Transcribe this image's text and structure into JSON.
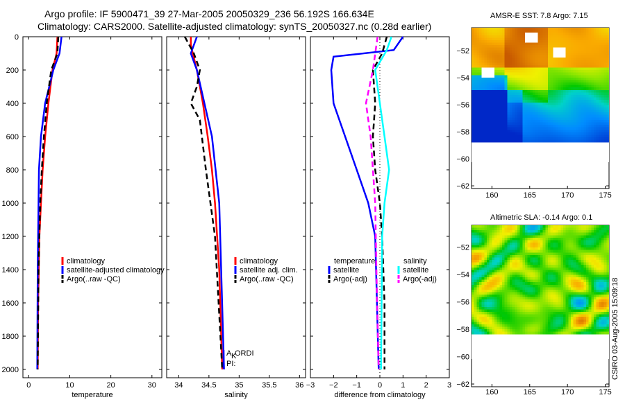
{
  "title": {
    "line1": "Argo profile: IF 5900471_39 27-Mar-2005 20050329_236 56.192S 166.634E",
    "line2": "Climatology: CARS2000. Satellite-adjusted climatology: synTS_20050327.nc (0.28d earlier)"
  },
  "stamp": "CSIRO 03-Aug-2005 15:09:18",
  "colors": {
    "climatology": "#ff0000",
    "satellite": "#0000ff",
    "argo": "#000000",
    "sal_satellite": "#00ffff",
    "sal_argo": "#ff00ff"
  },
  "chart_data": [
    {
      "type": "line",
      "id": "temperature",
      "xlabel": "temperature",
      "ylabel": "",
      "xlim": [
        -1.4,
        32.4
      ],
      "ylim": [
        2050,
        0
      ],
      "xticks": [
        "0",
        "10",
        "20",
        "30"
      ],
      "yticks": [
        "0",
        "200",
        "400",
        "600",
        "800",
        "1000",
        "1200",
        "1400",
        "1600",
        "1800",
        "2000"
      ],
      "legend": [
        "climatology",
        "satellite-adjusted climatology",
        "Argo(..raw -QC)"
      ],
      "series": [
        {
          "name": "climatology",
          "color": "#ff0000",
          "dash": false,
          "depth": [
            0,
            100,
            200,
            400,
            600,
            800,
            1000,
            1200,
            1600,
            2000
          ],
          "x": [
            7,
            6.8,
            5.8,
            4.8,
            4,
            3.4,
            3,
            2.6,
            2.3,
            2.2
          ]
        },
        {
          "name": "satellite-adjusted climatology",
          "color": "#0000ff",
          "dash": false,
          "depth": [
            0,
            100,
            200,
            400,
            600,
            800,
            1000,
            1400,
            2000
          ],
          "x": [
            8,
            7.5,
            6,
            4,
            3,
            2.5,
            2.4,
            2.2,
            2.1
          ]
        },
        {
          "name": "Argo(..raw -QC)",
          "color": "#000000",
          "dash": true,
          "depth": [
            0,
            100,
            200,
            400,
            600,
            800,
            1000,
            1400,
            2000
          ],
          "x": [
            7.2,
            7,
            5.5,
            4.4,
            3.7,
            3.2,
            2.8,
            2.4,
            2.2
          ]
        }
      ]
    },
    {
      "type": "line",
      "id": "salinity",
      "xlabel": "salinity",
      "xlim": [
        33.8,
        36.1
      ],
      "ylim": [
        2050,
        0
      ],
      "xticks": [
        "34",
        "34.5",
        "35",
        "35.5",
        "36"
      ],
      "legend": [
        "climatology",
        "satellite adj. clim.",
        "Argo(..raw -QC)"
      ],
      "annotations": [
        "ORDI",
        "PI:"
      ],
      "annotation_prefix": "A",
      "annotation_sub": "K",
      "series": [
        {
          "name": "climatology",
          "color": "#ff0000",
          "dash": false,
          "depth": [
            0,
            50,
            200,
            400,
            600,
            800,
            1000,
            1400,
            2000
          ],
          "x": [
            34.2,
            34.2,
            34.3,
            34.4,
            34.48,
            34.55,
            34.6,
            34.67,
            34.72
          ]
        },
        {
          "name": "satellite adj. clim.",
          "color": "#0000ff",
          "dash": false,
          "depth": [
            0,
            100,
            200,
            600,
            1000,
            2000
          ],
          "x": [
            34.3,
            34.2,
            34.3,
            34.55,
            34.67,
            34.75
          ]
        },
        {
          "name": "Argo(..raw -QC)",
          "color": "#000000",
          "dash": true,
          "depth": [
            0,
            100,
            200,
            300,
            400,
            500,
            800,
            1200,
            2000
          ],
          "x": [
            34.1,
            34.25,
            34.35,
            34.3,
            34.2,
            34.35,
            34.45,
            34.6,
            34.72
          ]
        }
      ]
    },
    {
      "type": "line",
      "id": "difference",
      "xlabel": "difference from climatology",
      "xlim": [
        -3,
        3
      ],
      "ylim": [
        2050,
        0
      ],
      "xticks": [
        "-3",
        "-2",
        "-1",
        "0",
        "1",
        "2",
        "3"
      ],
      "legend_temperature": {
        "heading": "temperature",
        "items": [
          "satellite",
          "Argo(-adj)"
        ]
      },
      "legend_salinity": {
        "heading": "salinity",
        "items": [
          "satellite",
          "Argo(-adj)"
        ]
      },
      "series": [
        {
          "name": "temperature satellite",
          "color": "#0000ff",
          "dash": false,
          "depth": [
            0,
            80,
            120,
            200,
            400,
            600,
            800,
            1000,
            1200,
            2000
          ],
          "x": [
            1,
            0.6,
            -2,
            -2.1,
            -2,
            -1.5,
            -1,
            -0.5,
            -0.2,
            -0.05
          ]
        },
        {
          "name": "temperature Argo(-adj)",
          "color": "#000000",
          "dash": true,
          "depth": [
            0,
            100,
            200,
            400,
            600,
            800,
            1000,
            1200,
            1600,
            2000
          ],
          "x": [
            0.3,
            0.1,
            -0.3,
            -0.2,
            -0.3,
            -0.2,
            0,
            0.1,
            0.2,
            0.2
          ]
        },
        {
          "name": "salinity satellite",
          "color": "#00ffff",
          "dash": false,
          "depth": [
            0,
            80,
            200,
            400,
            600,
            800,
            1000,
            1200,
            2000
          ],
          "x": [
            0.5,
            0.3,
            -0.2,
            0,
            0.2,
            0.4,
            0.2,
            0.1,
            0.05
          ]
        },
        {
          "name": "salinity Argo(-adj)",
          "color": "#ff00ff",
          "dash": true,
          "depth": [
            0,
            200,
            400,
            600,
            800,
            1000,
            1400,
            2000
          ],
          "x": [
            -0.1,
            -0.3,
            -0.6,
            -0.4,
            -0.3,
            -0.2,
            -0.15,
            -0.05
          ]
        }
      ]
    },
    {
      "type": "heatmap",
      "id": "sst-map",
      "title": "AMSR-E SST: 7.8 Argo: 7.15",
      "xlim": [
        157.3,
        175.5
      ],
      "ylim": [
        -62.2,
        -50.3
      ],
      "xticks": [
        "160",
        "165",
        "170",
        "175"
      ],
      "yticks": [
        "-52",
        "-54",
        "-56",
        "-58",
        "-60",
        "-62"
      ],
      "argo_position": [
        166.634,
        -56.192
      ]
    },
    {
      "type": "heatmap",
      "id": "sla-map",
      "title": "Altimetric SLA: -0.14 Argo: 0.1",
      "xlim": [
        157.3,
        175.5
      ],
      "ylim": [
        -62.2,
        -50.4
      ],
      "xticks": [
        "160",
        "165",
        "170",
        "175"
      ],
      "yticks": [
        "-52",
        "-54",
        "-56",
        "-58",
        "-60",
        "-62"
      ],
      "argo_position": [
        166.634,
        -56.192
      ]
    }
  ]
}
